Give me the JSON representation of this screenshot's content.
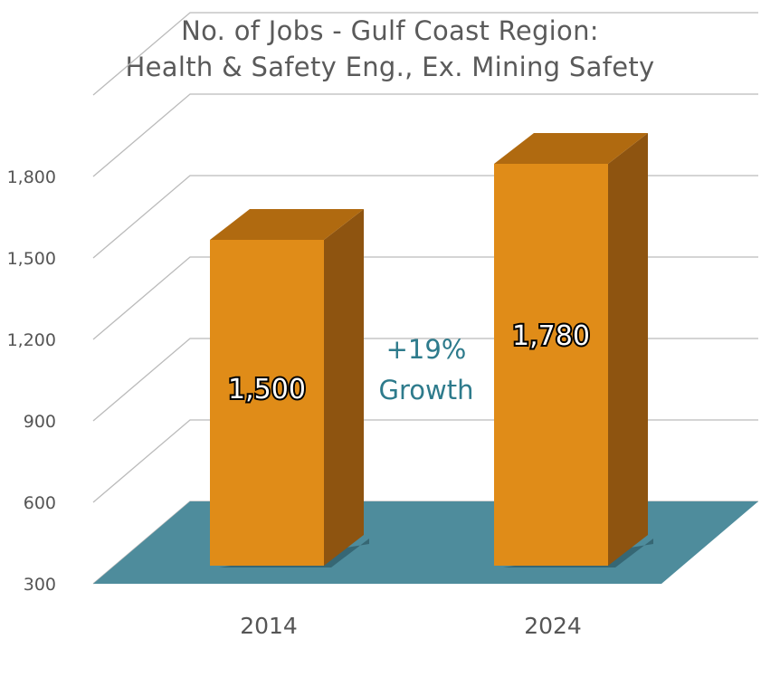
{
  "chart_data": {
    "type": "bar",
    "title_lines": [
      "No. of Jobs - Gulf Coast Region:",
      "Health & Safety Eng., Ex. Mining Safety"
    ],
    "categories": [
      "2014",
      "2024"
    ],
    "values": [
      1500,
      1780
    ],
    "data_labels": [
      "1,500",
      "1,780"
    ],
    "yticks": [
      300,
      600,
      900,
      1200,
      1500,
      1800
    ],
    "ytick_labels": [
      "300",
      "600",
      "900",
      "1,200",
      "1,500",
      "1,800"
    ],
    "ylim": [
      300,
      2100
    ],
    "annotation": [
      "+19%",
      "Growth"
    ],
    "grid": true,
    "three_d": true,
    "colors": {
      "bar_front": "#e08c18",
      "bar_side": "#8e5410",
      "bar_top": "#b06a10",
      "floor": "#4e8c9c",
      "grid": "#bbbbbb",
      "annotation": "#2e7b8c"
    }
  }
}
